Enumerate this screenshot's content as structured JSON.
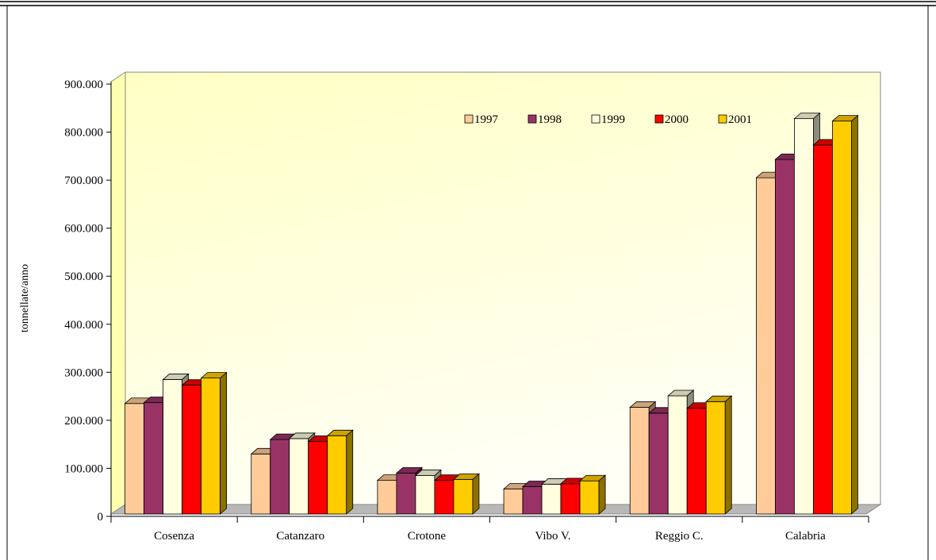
{
  "chart_data": {
    "type": "bar",
    "title": "",
    "xlabel": "",
    "ylabel": "tonnellate/anno",
    "ylim": [
      0,
      900000
    ],
    "yticks": [
      "0",
      "100.000",
      "200.000",
      "300.000",
      "400.000",
      "500.000",
      "600.000",
      "700.000",
      "800.000",
      "900.000"
    ],
    "categories": [
      "Cosenza",
      "Catanzaro",
      "Crotone",
      "Vibo V.",
      "Reggio C.",
      "Calabria"
    ],
    "series": [
      {
        "name": "1997",
        "color": "#FFCC99",
        "values": [
          230000,
          125000,
          70000,
          52000,
          222000,
          700000
        ]
      },
      {
        "name": "1998",
        "color": "#993366",
        "values": [
          232000,
          155000,
          85000,
          57000,
          210000,
          738000
        ]
      },
      {
        "name": "1999",
        "color": "#FFFFE0",
        "values": [
          280000,
          157000,
          80000,
          62000,
          246000,
          823000
        ]
      },
      {
        "name": "2000",
        "color": "#FF0000",
        "values": [
          268000,
          151000,
          70000,
          63000,
          220000,
          768000
        ]
      },
      {
        "name": "2001",
        "color": "#FFCC00",
        "values": [
          283000,
          163000,
          72000,
          69000,
          234000,
          818000
        ]
      }
    ],
    "legend_position": "top-right",
    "grid": false
  }
}
